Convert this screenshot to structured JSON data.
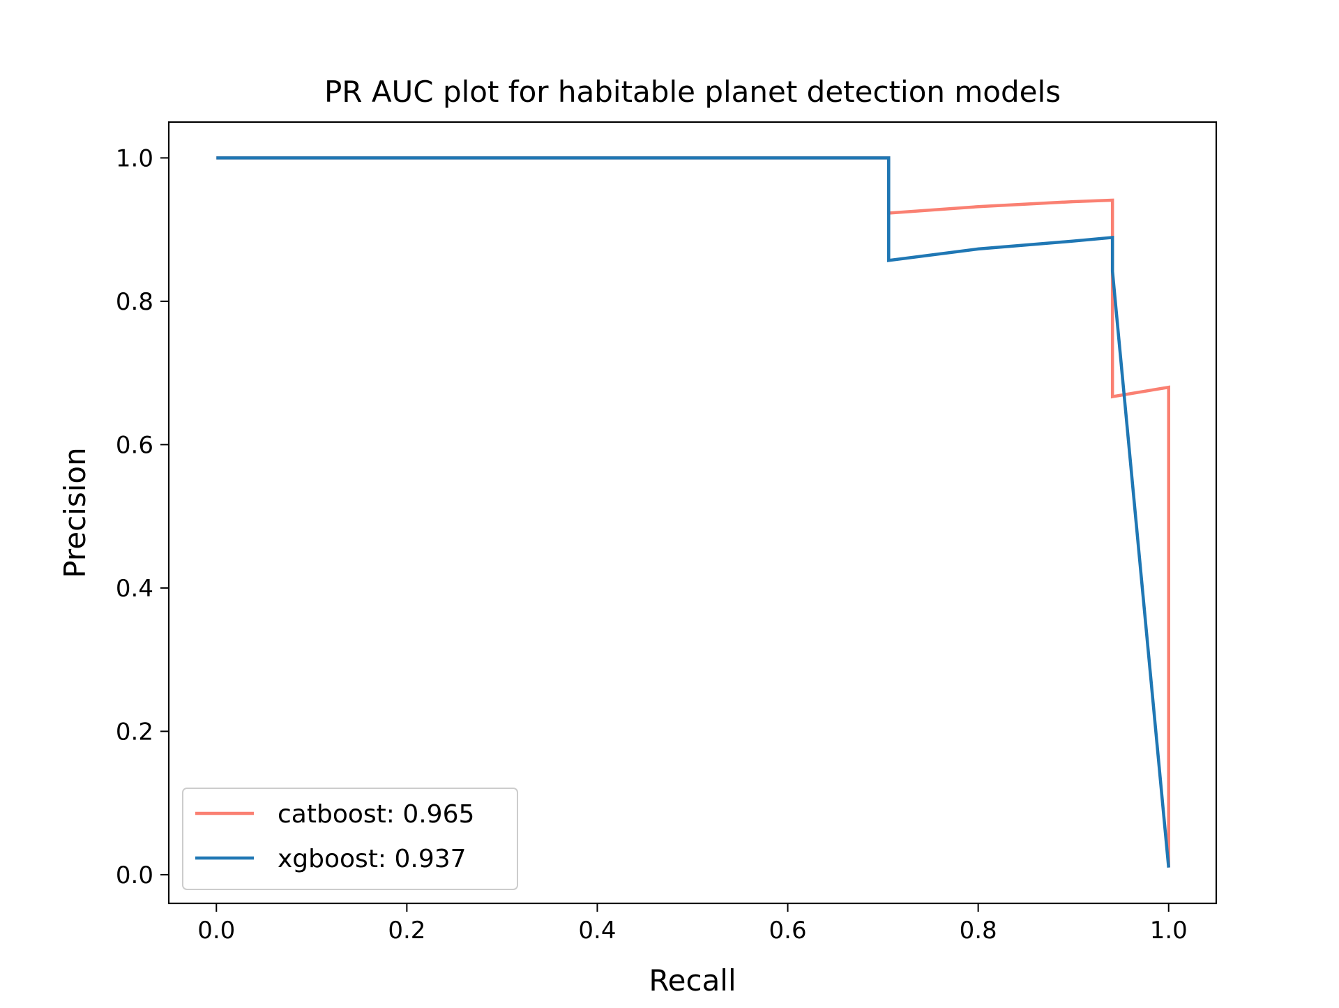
{
  "chart_data": {
    "type": "line",
    "title": "PR AUC plot for habitable planet detection models",
    "xlabel": "Recall",
    "ylabel": "Precision",
    "xlim": [
      -0.05,
      1.05
    ],
    "ylim": [
      -0.04,
      1.05
    ],
    "xticks": [
      0.0,
      0.2,
      0.4,
      0.6,
      0.8,
      1.0
    ],
    "xtick_labels": [
      "0.0",
      "0.2",
      "0.4",
      "0.6",
      "0.8",
      "1.0"
    ],
    "yticks": [
      0.0,
      0.2,
      0.4,
      0.6,
      0.8,
      1.0
    ],
    "ytick_labels": [
      "0.0",
      "0.2",
      "0.4",
      "0.6",
      "0.8",
      "1.0"
    ],
    "grid": false,
    "legend_position": "lower-left",
    "series": [
      {
        "name": "catboost: 0.965",
        "color": "#fa8072",
        "x": [
          0.0,
          0.706,
          0.706,
          0.8,
          0.9,
          0.941,
          0.941,
          0.941,
          1.0,
          1.0
        ],
        "y": [
          1.0,
          1.0,
          0.923,
          0.932,
          0.939,
          0.941,
          0.889,
          0.667,
          0.68,
          0.01
        ]
      },
      {
        "name": "xgboost: 0.937",
        "color": "#1f77b4",
        "x": [
          0.0,
          0.706,
          0.706,
          0.8,
          0.9,
          0.941,
          0.941,
          1.0
        ],
        "y": [
          1.0,
          1.0,
          0.857,
          0.873,
          0.884,
          0.889,
          0.842,
          0.01
        ]
      }
    ]
  }
}
